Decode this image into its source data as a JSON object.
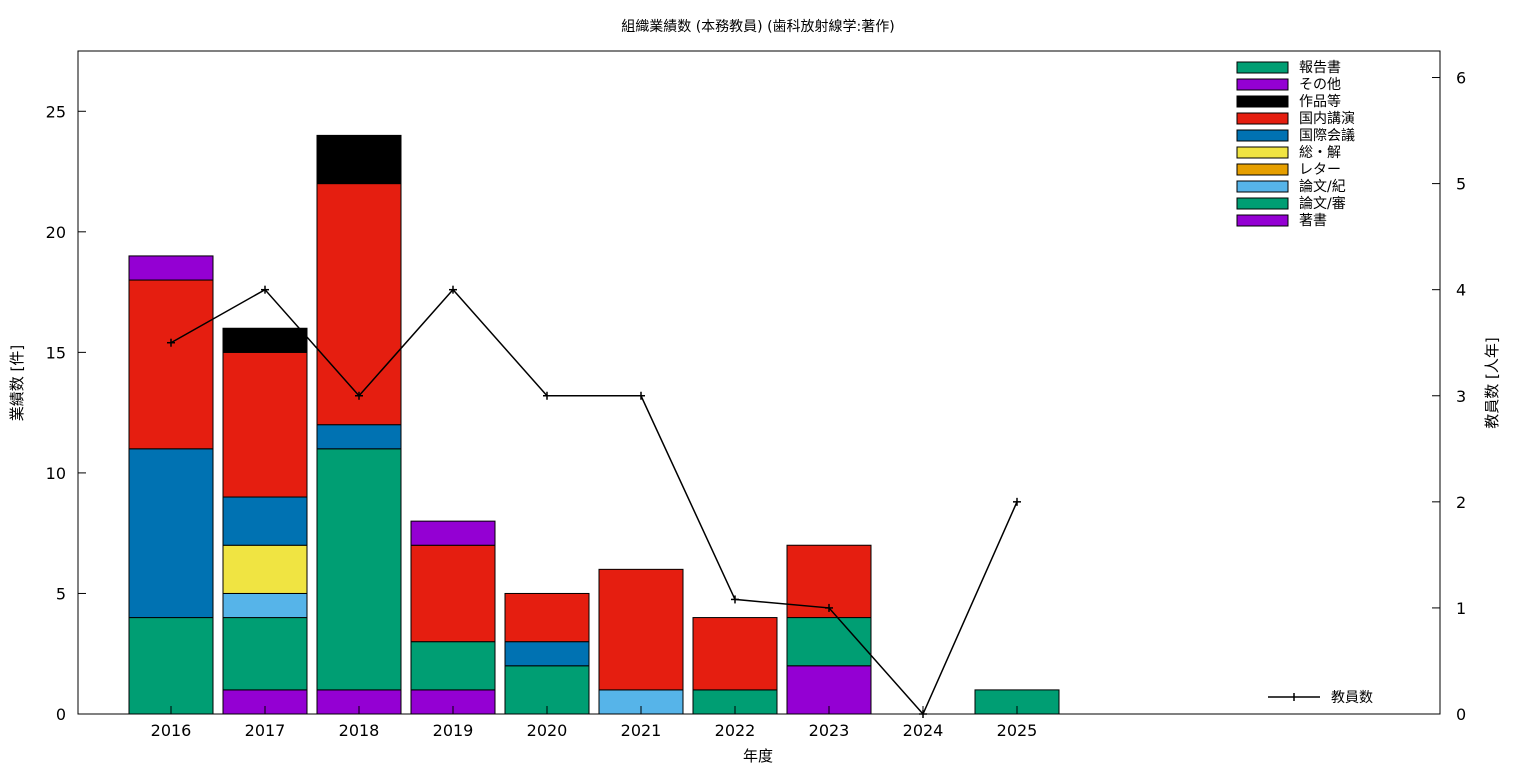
{
  "chart_data": {
    "type": "bar",
    "stacked": true,
    "title": "組織業績数 (本務教員) (歯科放射線学:著作)",
    "xlabel": "年度",
    "ylabel": "業績数 [件]",
    "y2label": "教員数 [人年]",
    "categories": [
      "2016",
      "2017",
      "2018",
      "2019",
      "2020",
      "2021",
      "2022",
      "2023",
      "2024",
      "2025"
    ],
    "ylim": [
      0,
      27.5
    ],
    "yticks": [
      0,
      5,
      10,
      15,
      20,
      25
    ],
    "y2lim": [
      0,
      6.25
    ],
    "y2ticks": [
      0,
      1,
      2,
      3,
      4,
      5,
      6
    ],
    "grid": false,
    "legend_position": "top-right",
    "series": [
      {
        "name": "著書",
        "color": "#9400d3",
        "values": [
          0,
          1,
          1,
          1,
          0,
          0,
          0,
          2,
          0,
          0
        ]
      },
      {
        "name": "論文/審",
        "color": "#009e73",
        "values": [
          4,
          3,
          10,
          2,
          2,
          0,
          1,
          2,
          0,
          1
        ]
      },
      {
        "name": "論文/紀",
        "color": "#56b4e9",
        "values": [
          0,
          1,
          0,
          0,
          0,
          1,
          0,
          0,
          0,
          0
        ]
      },
      {
        "name": "レター",
        "color": "#e69f00",
        "values": [
          0,
          0,
          0,
          0,
          0,
          0,
          0,
          0,
          0,
          0
        ]
      },
      {
        "name": "総・解",
        "color": "#f0e442",
        "values": [
          0,
          2,
          0,
          0,
          0,
          0,
          0,
          0,
          0,
          0
        ]
      },
      {
        "name": "国際会議",
        "color": "#0072b2",
        "values": [
          7,
          2,
          1,
          0,
          1,
          0,
          0,
          0,
          0,
          0
        ]
      },
      {
        "name": "国内講演",
        "color": "#e51e10",
        "values": [
          7,
          6,
          10,
          4,
          2,
          5,
          3,
          3,
          0,
          0
        ]
      },
      {
        "name": "作品等",
        "color": "#000000",
        "values": [
          0,
          1,
          2,
          0,
          0,
          0,
          0,
          0,
          0,
          0
        ]
      },
      {
        "name": "その他",
        "color": "#9400d3",
        "values": [
          1,
          0,
          0,
          1,
          0,
          0,
          0,
          0,
          0,
          0
        ]
      },
      {
        "name": "報告書",
        "color": "#009e73",
        "values": [
          0,
          0,
          0,
          0,
          0,
          0,
          0,
          0,
          0,
          0
        ]
      }
    ],
    "line_series": {
      "name": "教員数",
      "color": "#000000",
      "axis": "right",
      "values": [
        3.5,
        4,
        3,
        4,
        3,
        3,
        1.08,
        1,
        0,
        2
      ]
    }
  }
}
